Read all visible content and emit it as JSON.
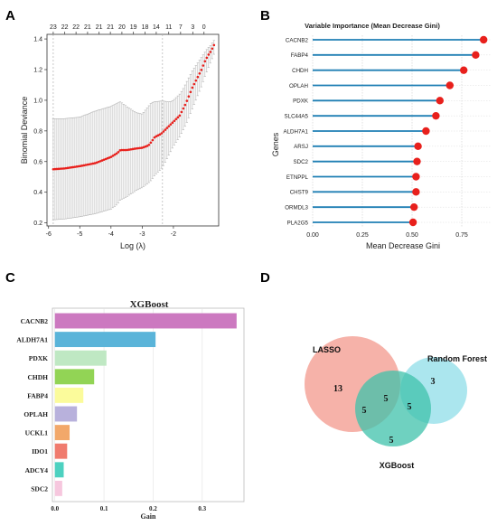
{
  "panels": {
    "a": "A",
    "b": "B",
    "c": "C",
    "d": "D"
  },
  "chart_data": [
    {
      "panel": "A",
      "type": "line",
      "xlabel": "Log (λ)",
      "ylabel": "Binomial Deviance",
      "xlim": [
        -6.05,
        -0.55
      ],
      "ylim": [
        0.18,
        1.43
      ],
      "xticks": [
        -6,
        -5,
        -4,
        -3,
        -2
      ],
      "yticks": [
        0.2,
        0.4,
        0.6,
        0.8,
        1.0,
        1.2,
        1.4
      ],
      "ytick_labels": [
        "0.2",
        "0.4",
        "0.6",
        "0.8",
        "1.0",
        "1.2",
        "1.4"
      ],
      "top_axis": {
        "positions": [
          -5.85,
          -5.48,
          -5.12,
          -4.75,
          -4.38,
          -4.02,
          -3.65,
          -3.28,
          -2.91,
          -2.55,
          -2.15,
          -1.77,
          -1.38,
          -1.02
        ],
        "labels": [
          "23",
          "22",
          "22",
          "21",
          "21",
          "21",
          "20",
          "19",
          "18",
          "14",
          "11",
          "7",
          "3",
          "0"
        ]
      },
      "vlines": [
        -5.85,
        -2.35
      ],
      "x": [
        -5.85,
        -5.5,
        -5.0,
        -4.5,
        -4.0,
        -3.8,
        -3.7,
        -3.5,
        -3.2,
        -3.0,
        -2.8,
        -2.7,
        -2.6,
        -2.4,
        -2.3,
        -2.2,
        -2.1,
        -2.0,
        -1.9,
        -1.8,
        -1.7,
        -1.6,
        -1.5,
        -1.4,
        -1.3,
        -1.2,
        -1.1,
        -1.0,
        -0.9,
        -0.8,
        -0.7
      ],
      "y": [
        0.55,
        0.555,
        0.57,
        0.59,
        0.63,
        0.655,
        0.675,
        0.675,
        0.685,
        0.69,
        0.705,
        0.73,
        0.76,
        0.78,
        0.8,
        0.82,
        0.84,
        0.86,
        0.88,
        0.9,
        0.94,
        0.98,
        1.03,
        1.08,
        1.12,
        1.16,
        1.2,
        1.25,
        1.29,
        1.32,
        1.36
      ],
      "upper": [
        0.88,
        0.88,
        0.89,
        0.93,
        0.96,
        0.98,
        0.99,
        0.96,
        0.92,
        0.91,
        0.96,
        0.985,
        0.99,
        0.995,
        0.995,
        0.99,
        0.99,
        1.0,
        1.02,
        1.04,
        1.07,
        1.11,
        1.15,
        1.19,
        1.22,
        1.25,
        1.28,
        1.31,
        1.34,
        1.36,
        1.39
      ],
      "lower": [
        0.22,
        0.225,
        0.24,
        0.26,
        0.29,
        0.32,
        0.35,
        0.37,
        0.41,
        0.43,
        0.46,
        0.48,
        0.51,
        0.55,
        0.58,
        0.62,
        0.66,
        0.7,
        0.73,
        0.76,
        0.8,
        0.84,
        0.89,
        0.94,
        0.99,
        1.04,
        1.09,
        1.15,
        1.2,
        1.25,
        1.3
      ],
      "colors": {
        "line": "#e8201c",
        "band": "#a8a8a8",
        "vline": "#b0b0b0"
      }
    },
    {
      "panel": "B",
      "type": "bar",
      "title": "Variable Importance (Mean Decrease Gini)",
      "xlabel": "Mean Decrease Gini",
      "ylabel": "Genes",
      "xlim": [
        0,
        0.9
      ],
      "xticks": [
        0.0,
        0.25,
        0.5,
        0.75
      ],
      "xtick_labels": [
        "0.00",
        "0.25",
        "0.50",
        "0.75"
      ],
      "categories": [
        "CACNB2",
        "FABP4",
        "CHDH",
        "OPLAH",
        "PDXK",
        "SLC44A5",
        "ALDH7A1",
        "ARSJ",
        "SDC2",
        "ETNPPL",
        "CHST9",
        "ORMDL3",
        "PLA2G5"
      ],
      "values": [
        0.86,
        0.82,
        0.76,
        0.69,
        0.64,
        0.62,
        0.57,
        0.53,
        0.525,
        0.52,
        0.52,
        0.51,
        0.505
      ],
      "colors": {
        "stem": "#1f7fb4",
        "dot": "#e8201c"
      }
    },
    {
      "panel": "C",
      "type": "bar",
      "title": "XGBoost",
      "xlabel": "Gain",
      "xlim": [
        -0.005,
        0.385
      ],
      "xticks": [
        0.0,
        0.1,
        0.2,
        0.3
      ],
      "xtick_labels": [
        "0.0",
        "0.1",
        "0.2",
        "0.3"
      ],
      "categories": [
        "CACNB2",
        "ALDH7A1",
        "PDXK",
        "CHDH",
        "FABP4",
        "OPLAH",
        "UCKL1",
        "IDO1",
        "ADCY4",
        "SDC2"
      ],
      "values": [
        0.37,
        0.205,
        0.105,
        0.08,
        0.058,
        0.045,
        0.03,
        0.025,
        0.018,
        0.015
      ],
      "colors": [
        "#cc79c0",
        "#5ab4d9",
        "#bfe8c3",
        "#92d455",
        "#fbfb9b",
        "#b8b1dc",
        "#f2a86a",
        "#f07b6e",
        "#4dd1c0",
        "#f6c7de"
      ]
    },
    {
      "panel": "D",
      "type": "venn",
      "sets": [
        "LASSO",
        "Random Forest",
        "XGBoost"
      ],
      "regions": {
        "lasso_only": "13",
        "lasso_rf": "5",
        "lasso_xgb": "5",
        "rf_xgb": "5",
        "rf_only": "3",
        "xgb_only": "5"
      },
      "colors": {
        "lasso": "#f4a59a",
        "rf": "#8fdde8",
        "xgb": "#4ec9b4"
      }
    }
  ]
}
